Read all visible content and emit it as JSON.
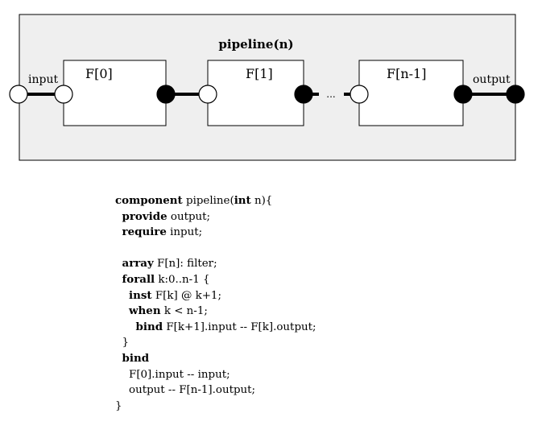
{
  "diagram": {
    "title": "pipeline(n)",
    "filters": [
      {
        "label": "F[0]"
      },
      {
        "label": "F[1]"
      },
      {
        "label": "F[n-1]"
      }
    ],
    "ellipsis": "...",
    "input_label": "input",
    "output_label": "output",
    "colors": {
      "container_fill": "#efefef",
      "stroke": "#000000",
      "provided_port": "#000000",
      "required_port": "#ffffff"
    }
  },
  "code": {
    "lines": [
      [
        {
          "t": "component",
          "b": true
        },
        {
          "t": " pipeline("
        },
        {
          "t": "int",
          "b": true
        },
        {
          "t": " n){"
        }
      ],
      [
        {
          "t": "  "
        },
        {
          "t": "provide",
          "b": true
        },
        {
          "t": " output;"
        }
      ],
      [
        {
          "t": "  "
        },
        {
          "t": "require",
          "b": true
        },
        {
          "t": " input;"
        }
      ],
      [],
      [
        {
          "t": "  "
        },
        {
          "t": "array",
          "b": true
        },
        {
          "t": " F[n]: filter;"
        }
      ],
      [
        {
          "t": "  "
        },
        {
          "t": "forall",
          "b": true
        },
        {
          "t": " k:0..n-1 {"
        }
      ],
      [
        {
          "t": "    "
        },
        {
          "t": "inst",
          "b": true
        },
        {
          "t": " F[k] @ k+1;"
        }
      ],
      [
        {
          "t": "    "
        },
        {
          "t": "when",
          "b": true
        },
        {
          "t": " k < n-1;"
        }
      ],
      [
        {
          "t": "      "
        },
        {
          "t": "bind",
          "b": true
        },
        {
          "t": " F[k+1].input -- F[k].output;"
        }
      ],
      [
        {
          "t": "  }"
        }
      ],
      [
        {
          "t": "  "
        },
        {
          "t": "bind",
          "b": true
        }
      ],
      [
        {
          "t": "    F[0].input -- input;"
        }
      ],
      [
        {
          "t": "    output -- F[n-1].output;"
        }
      ],
      [
        {
          "t": "}"
        }
      ]
    ]
  }
}
